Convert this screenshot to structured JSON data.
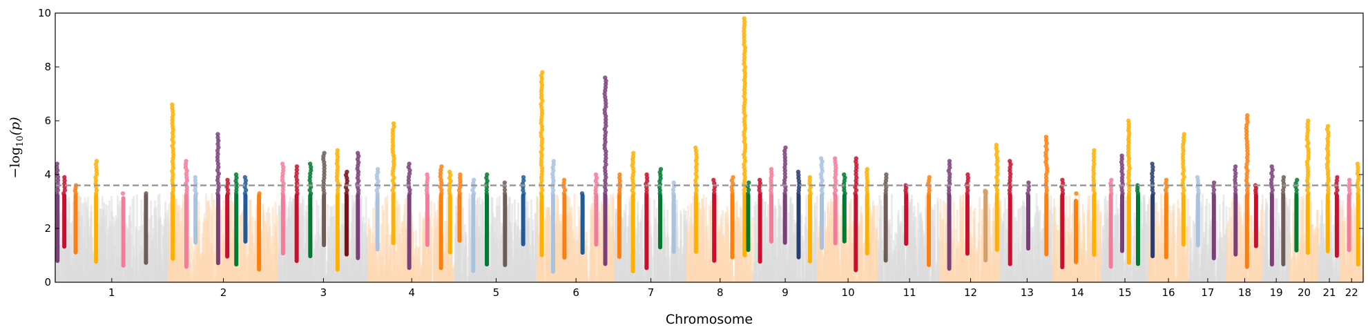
{
  "chart_data": {
    "type": "scatter",
    "subtype": "manhattan",
    "title": "",
    "xlabel": "Chromosome",
    "ylabel_parts": {
      "base": "−log",
      "sub": "10",
      "arg": "(p)"
    },
    "ylim": [
      0,
      10
    ],
    "yticks": [
      "0",
      "2",
      "4",
      "6",
      "8",
      "10"
    ],
    "threshold": 3.6,
    "threshold_style": "dashed grey",
    "grid": false,
    "background_colors": {
      "odd_chromosomes": "#dcdcdc",
      "even_chromosomes": "#fdd9b5"
    },
    "highlight_colors": [
      "#c8102e",
      "#7b3f7a",
      "#f47c9b",
      "#ff7f0e",
      "#ffb000",
      "#1f5a99",
      "#007a33",
      "#6e5d57",
      "#a9c2e0",
      "#7a0f14",
      "#d4a06a",
      "#2a3d73"
    ],
    "chromosomes": [
      {
        "label": "1",
        "length": 249
      },
      {
        "label": "2",
        "length": 243
      },
      {
        "label": "3",
        "length": 198
      },
      {
        "label": "4",
        "length": 191
      },
      {
        "label": "5",
        "length": 181
      },
      {
        "label": "6",
        "length": 171
      },
      {
        "label": "7",
        "length": 159
      },
      {
        "label": "8",
        "length": 146
      },
      {
        "label": "9",
        "length": 141
      },
      {
        "label": "10",
        "length": 136
      },
      {
        "label": "11",
        "length": 135
      },
      {
        "label": "12",
        "length": 134
      },
      {
        "label": "13",
        "length": 115
      },
      {
        "label": "14",
        "length": 107
      },
      {
        "label": "15",
        "length": 102
      },
      {
        "label": "16",
        "length": 90
      },
      {
        "label": "17",
        "length": 83
      },
      {
        "label": "18",
        "length": 80
      },
      {
        "label": "19",
        "length": 59
      },
      {
        "label": "20",
        "length": 64
      },
      {
        "label": "21",
        "length": 47
      },
      {
        "label": "22",
        "length": 51
      }
    ],
    "peaks": [
      {
        "chr": "1",
        "pos": 5,
        "max": 4.4,
        "color": "#7b3f7a"
      },
      {
        "chr": "1",
        "pos": 20,
        "max": 3.9,
        "color": "#c8102e"
      },
      {
        "chr": "1",
        "pos": 45,
        "max": 3.6,
        "color": "#ff7f0e"
      },
      {
        "chr": "1",
        "pos": 90,
        "max": 4.5,
        "color": "#ffb000"
      },
      {
        "chr": "1",
        "pos": 150,
        "max": 3.2,
        "color": "#f47c9b"
      },
      {
        "chr": "1",
        "pos": 200,
        "max": 3.3,
        "color": "#6e5d57"
      },
      {
        "chr": "2",
        "pos": 10,
        "max": 6.6,
        "color": "#ffb000"
      },
      {
        "chr": "2",
        "pos": 40,
        "max": 4.5,
        "color": "#f47c9b"
      },
      {
        "chr": "2",
        "pos": 60,
        "max": 3.9,
        "color": "#a9c2e0"
      },
      {
        "chr": "2",
        "pos": 110,
        "max": 5.5,
        "color": "#7b3f7a"
      },
      {
        "chr": "2",
        "pos": 130,
        "max": 3.8,
        "color": "#c8102e"
      },
      {
        "chr": "2",
        "pos": 150,
        "max": 4.0,
        "color": "#007a33"
      },
      {
        "chr": "2",
        "pos": 170,
        "max": 3.9,
        "color": "#1f5a99"
      },
      {
        "chr": "2",
        "pos": 200,
        "max": 3.3,
        "color": "#ff7f0e"
      },
      {
        "chr": "3",
        "pos": 10,
        "max": 4.4,
        "color": "#f47c9b"
      },
      {
        "chr": "3",
        "pos": 40,
        "max": 4.3,
        "color": "#c8102e"
      },
      {
        "chr": "3",
        "pos": 70,
        "max": 4.4,
        "color": "#007a33"
      },
      {
        "chr": "3",
        "pos": 100,
        "max": 4.8,
        "color": "#6e5d57"
      },
      {
        "chr": "3",
        "pos": 130,
        "max": 4.9,
        "color": "#ffb000"
      },
      {
        "chr": "3",
        "pos": 150,
        "max": 4.1,
        "color": "#7a0f14"
      },
      {
        "chr": "3",
        "pos": 175,
        "max": 4.8,
        "color": "#7b3f7a"
      },
      {
        "chr": "4",
        "pos": 20,
        "max": 4.2,
        "color": "#a9c2e0"
      },
      {
        "chr": "4",
        "pos": 55,
        "max": 5.9,
        "color": "#ffb000"
      },
      {
        "chr": "4",
        "pos": 90,
        "max": 4.4,
        "color": "#7b3f7a"
      },
      {
        "chr": "4",
        "pos": 130,
        "max": 4.0,
        "color": "#f47c9b"
      },
      {
        "chr": "4",
        "pos": 160,
        "max": 4.3,
        "color": "#ff7f0e"
      },
      {
        "chr": "4",
        "pos": 180,
        "max": 4.1,
        "color": "#ffb000"
      },
      {
        "chr": "5",
        "pos": 10,
        "max": 4.0,
        "color": "#ff7f0e"
      },
      {
        "chr": "5",
        "pos": 40,
        "max": 3.8,
        "color": "#a9c2e0"
      },
      {
        "chr": "5",
        "pos": 70,
        "max": 4.0,
        "color": "#007a33"
      },
      {
        "chr": "5",
        "pos": 110,
        "max": 3.7,
        "color": "#6e5d57"
      },
      {
        "chr": "5",
        "pos": 150,
        "max": 3.9,
        "color": "#1f5a99"
      },
      {
        "chr": "6",
        "pos": 10,
        "max": 7.8,
        "color": "#ffb000"
      },
      {
        "chr": "6",
        "pos": 35,
        "max": 4.5,
        "color": "#a9c2e0"
      },
      {
        "chr": "6",
        "pos": 60,
        "max": 3.8,
        "color": "#ff7f0e"
      },
      {
        "chr": "6",
        "pos": 100,
        "max": 3.3,
        "color": "#1f5a99"
      },
      {
        "chr": "6",
        "pos": 130,
        "max": 4.0,
        "color": "#f47c9b"
      },
      {
        "chr": "6",
        "pos": 150,
        "max": 7.6,
        "color": "#7b3f7a"
      },
      {
        "chr": "7",
        "pos": 10,
        "max": 4.0,
        "color": "#ff7f0e"
      },
      {
        "chr": "7",
        "pos": 40,
        "max": 4.8,
        "color": "#ffb000"
      },
      {
        "chr": "7",
        "pos": 70,
        "max": 4.0,
        "color": "#c8102e"
      },
      {
        "chr": "7",
        "pos": 100,
        "max": 4.2,
        "color": "#007a33"
      },
      {
        "chr": "7",
        "pos": 130,
        "max": 3.7,
        "color": "#a9c2e0"
      },
      {
        "chr": "8",
        "pos": 20,
        "max": 5.0,
        "color": "#ffb000"
      },
      {
        "chr": "8",
        "pos": 60,
        "max": 3.8,
        "color": "#c8102e"
      },
      {
        "chr": "8",
        "pos": 100,
        "max": 3.9,
        "color": "#ff7f0e"
      },
      {
        "chr": "8",
        "pos": 127,
        "max": 9.8,
        "color": "#ffb000"
      },
      {
        "chr": "8",
        "pos": 135,
        "max": 3.7,
        "color": "#007a33"
      },
      {
        "chr": "9",
        "pos": 15,
        "max": 3.8,
        "color": "#c8102e"
      },
      {
        "chr": "9",
        "pos": 40,
        "max": 4.2,
        "color": "#f47c9b"
      },
      {
        "chr": "9",
        "pos": 70,
        "max": 5.0,
        "color": "#7b3f7a"
      },
      {
        "chr": "9",
        "pos": 100,
        "max": 4.1,
        "color": "#2a3d73"
      },
      {
        "chr": "9",
        "pos": 125,
        "max": 3.9,
        "color": "#ffb000"
      },
      {
        "chr": "10",
        "pos": 10,
        "max": 4.6,
        "color": "#a9c2e0"
      },
      {
        "chr": "10",
        "pos": 40,
        "max": 4.6,
        "color": "#f47c9b"
      },
      {
        "chr": "10",
        "pos": 60,
        "max": 4.0,
        "color": "#007a33"
      },
      {
        "chr": "10",
        "pos": 85,
        "max": 4.6,
        "color": "#c8102e"
      },
      {
        "chr": "10",
        "pos": 110,
        "max": 4.2,
        "color": "#ffb000"
      },
      {
        "chr": "11",
        "pos": 15,
        "max": 4.0,
        "color": "#6e5d57"
      },
      {
        "chr": "11",
        "pos": 60,
        "max": 3.6,
        "color": "#c8102e"
      },
      {
        "chr": "11",
        "pos": 110,
        "max": 3.9,
        "color": "#ff7f0e"
      },
      {
        "chr": "12",
        "pos": 20,
        "max": 4.5,
        "color": "#7b3f7a"
      },
      {
        "chr": "12",
        "pos": 60,
        "max": 4.0,
        "color": "#c8102e"
      },
      {
        "chr": "12",
        "pos": 100,
        "max": 3.4,
        "color": "#d4a06a"
      },
      {
        "chr": "12",
        "pos": 125,
        "max": 5.1,
        "color": "#ffb000"
      },
      {
        "chr": "13",
        "pos": 20,
        "max": 4.5,
        "color": "#c8102e"
      },
      {
        "chr": "13",
        "pos": 60,
        "max": 3.7,
        "color": "#7b3f7a"
      },
      {
        "chr": "13",
        "pos": 100,
        "max": 5.4,
        "color": "#ff7f0e"
      },
      {
        "chr": "14",
        "pos": 20,
        "max": 3.8,
        "color": "#c8102e"
      },
      {
        "chr": "14",
        "pos": 50,
        "max": 3.1,
        "color": "#ff7f0e"
      },
      {
        "chr": "14",
        "pos": 90,
        "max": 4.9,
        "color": "#ffb000"
      },
      {
        "chr": "15",
        "pos": 20,
        "max": 3.8,
        "color": "#f47c9b"
      },
      {
        "chr": "15",
        "pos": 45,
        "max": 4.7,
        "color": "#7b3f7a"
      },
      {
        "chr": "15",
        "pos": 60,
        "max": 6.0,
        "color": "#ffb000"
      },
      {
        "chr": "15",
        "pos": 80,
        "max": 3.6,
        "color": "#007a33"
      },
      {
        "chr": "16",
        "pos": 10,
        "max": 4.4,
        "color": "#2a3d73"
      },
      {
        "chr": "16",
        "pos": 40,
        "max": 3.8,
        "color": "#ff7f0e"
      },
      {
        "chr": "16",
        "pos": 78,
        "max": 5.5,
        "color": "#ffb000"
      },
      {
        "chr": "17",
        "pos": 20,
        "max": 3.9,
        "color": "#a9c2e0"
      },
      {
        "chr": "17",
        "pos": 55,
        "max": 3.7,
        "color": "#7b3f7a"
      },
      {
        "chr": "18",
        "pos": 20,
        "max": 4.3,
        "color": "#7b3f7a"
      },
      {
        "chr": "18",
        "pos": 45,
        "max": 6.2,
        "color": "#ff7f0e"
      },
      {
        "chr": "18",
        "pos": 65,
        "max": 3.6,
        "color": "#c8102e"
      },
      {
        "chr": "19",
        "pos": 20,
        "max": 4.3,
        "color": "#7b3f7a"
      },
      {
        "chr": "19",
        "pos": 45,
        "max": 3.9,
        "color": "#6e5d57"
      },
      {
        "chr": "20",
        "pos": 15,
        "max": 3.8,
        "color": "#007a33"
      },
      {
        "chr": "20",
        "pos": 40,
        "max": 6.0,
        "color": "#ffb000"
      },
      {
        "chr": "21",
        "pos": 20,
        "max": 5.8,
        "color": "#ffb000"
      },
      {
        "chr": "21",
        "pos": 40,
        "max": 3.9,
        "color": "#c8102e"
      },
      {
        "chr": "22",
        "pos": 20,
        "max": 3.8,
        "color": "#f47c9b"
      },
      {
        "chr": "22",
        "pos": 40,
        "max": 4.4,
        "color": "#ffb000"
      }
    ]
  }
}
